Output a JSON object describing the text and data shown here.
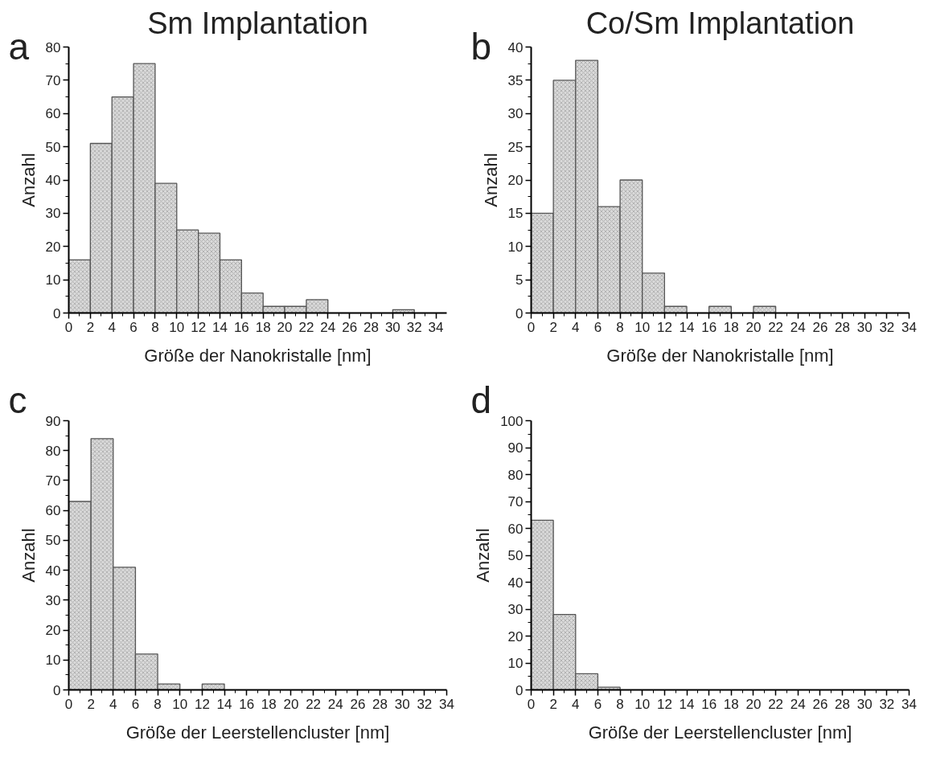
{
  "chart_data": [
    {
      "type": "histogram",
      "title": "Sm Implantation",
      "xlabel": "Größe der Nanokristalle [nm]",
      "ylabel": "Anzahl",
      "annotations": [
        "a"
      ],
      "color": "#d9d9d9",
      "bins": [
        0,
        2,
        4,
        6,
        8,
        10,
        12,
        14,
        16,
        18,
        20,
        22,
        24,
        26,
        28,
        30,
        32
      ],
      "values": [
        16,
        51,
        65,
        75,
        39,
        25,
        24,
        16,
        6,
        2,
        2,
        4,
        0,
        0,
        0,
        1
      ],
      "xlim": [
        0,
        35
      ],
      "xticks": [
        0,
        2,
        4,
        6,
        8,
        10,
        12,
        14,
        16,
        18,
        20,
        22,
        24,
        26,
        28,
        30,
        32,
        34
      ],
      "ylim": [
        0,
        80
      ],
      "yticks": [
        0,
        10,
        20,
        30,
        40,
        50,
        60,
        70,
        80
      ],
      "grid": false
    },
    {
      "type": "histogram",
      "title": "Co/Sm Implantation",
      "xlabel": "Größe der Nanokristalle [nm]",
      "ylabel": "Anzahl",
      "annotations": [
        "b"
      ],
      "color": "#d9d9d9",
      "bins": [
        0,
        2,
        4,
        6,
        8,
        10,
        12,
        14,
        16,
        18,
        20,
        22
      ],
      "values": [
        15,
        35,
        38,
        16,
        20,
        6,
        1,
        0,
        1,
        0,
        1
      ],
      "xlim": [
        0,
        34
      ],
      "xticks": [
        0,
        2,
        4,
        6,
        8,
        10,
        12,
        14,
        16,
        18,
        20,
        22,
        24,
        26,
        28,
        30,
        32,
        34
      ],
      "ylim": [
        0,
        40
      ],
      "yticks": [
        0,
        5,
        10,
        15,
        20,
        25,
        30,
        35,
        40
      ],
      "grid": false
    },
    {
      "type": "histogram",
      "xlabel": "Größe der Leerstellencluster [nm]",
      "ylabel": "Anzahl",
      "annotations": [
        "c"
      ],
      "color": "#d9d9d9",
      "bins": [
        0,
        2,
        4,
        6,
        8,
        10,
        12,
        14
      ],
      "values": [
        63,
        84,
        41,
        12,
        2,
        0,
        2
      ],
      "xlim": [
        0,
        34
      ],
      "xticks": [
        0,
        2,
        4,
        6,
        8,
        10,
        12,
        14,
        16,
        18,
        20,
        22,
        24,
        26,
        28,
        30,
        32,
        34
      ],
      "ylim": [
        0,
        90
      ],
      "yticks": [
        0,
        10,
        20,
        30,
        40,
        50,
        60,
        70,
        80,
        90
      ],
      "grid": false
    },
    {
      "type": "histogram",
      "xlabel": "Größe der Leerstellencluster [nm]",
      "ylabel": "Anzahl",
      "annotations": [
        "d"
      ],
      "color": "#d9d9d9",
      "bins": [
        0,
        2,
        4,
        6,
        8
      ],
      "values": [
        63,
        28,
        6,
        1
      ],
      "xlim": [
        0,
        34
      ],
      "xticks": [
        0,
        2,
        4,
        6,
        8,
        10,
        12,
        14,
        16,
        18,
        20,
        22,
        24,
        26,
        28,
        30,
        32,
        34
      ],
      "ylim": [
        0,
        100
      ],
      "yticks": [
        0,
        10,
        20,
        30,
        40,
        50,
        60,
        70,
        80,
        90,
        100
      ],
      "grid": false
    }
  ]
}
